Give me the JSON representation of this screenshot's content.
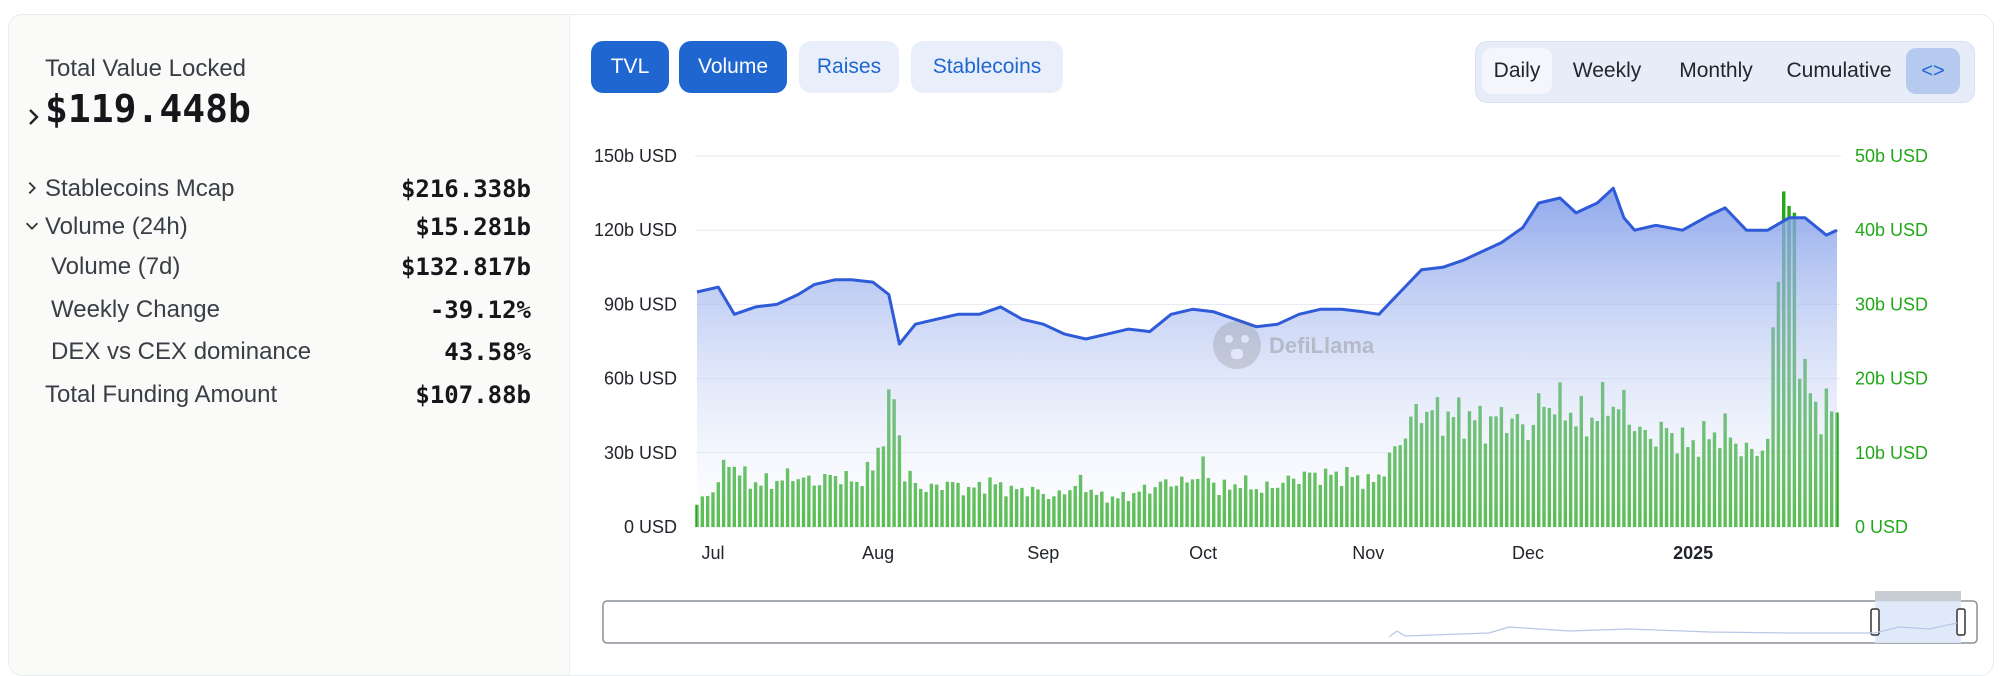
{
  "summary": {
    "tvl_label": "Total Value Locked",
    "tvl_value": "$119.448b",
    "rows": [
      {
        "label": "Stablecoins Mcap",
        "value": "$216.338b",
        "chevron": "right"
      },
      {
        "label": "Volume (24h)",
        "value": "$15.281b",
        "chevron": "down"
      },
      {
        "label": "Volume (7d)",
        "value": "$132.817b",
        "chevron": ""
      },
      {
        "label": "Weekly Change",
        "value": "-39.12%",
        "chevron": ""
      },
      {
        "label": "DEX vs CEX dominance",
        "value": "43.58%",
        "chevron": ""
      },
      {
        "label": "Total Funding Amount",
        "value": "$107.88b",
        "chevron": ""
      }
    ]
  },
  "tabs": [
    {
      "label": "TVL",
      "active": true
    },
    {
      "label": "Volume",
      "active": true
    },
    {
      "label": "Raises",
      "active": false
    },
    {
      "label": "Stablecoins",
      "active": false
    }
  ],
  "periods": [
    {
      "label": "Daily",
      "active": true
    },
    {
      "label": "Weekly",
      "active": false
    },
    {
      "label": "Monthly",
      "active": false
    },
    {
      "label": "Cumulative",
      "active": false
    }
  ],
  "embed_icon": "code-brackets-icon",
  "watermark": "DefiLlama",
  "colors": {
    "tvl": "#2f5ad8",
    "volume": "#23a81a",
    "accent": "#1f66d1"
  },
  "chart_data": {
    "type": "area",
    "x_axis": {
      "type": "date",
      "range": [
        "2024-06-28",
        "2025-01-28"
      ],
      "ticks": [
        {
          "date": "2024-07-01",
          "label": "Jul"
        },
        {
          "date": "2024-08-01",
          "label": "Aug"
        },
        {
          "date": "2024-09-01",
          "label": "Sep"
        },
        {
          "date": "2024-10-01",
          "label": "Oct"
        },
        {
          "date": "2024-11-01",
          "label": "Nov"
        },
        {
          "date": "2024-12-01",
          "label": "Dec"
        },
        {
          "date": "2025-01-01",
          "label": "2025"
        }
      ]
    },
    "y_left": {
      "range": [
        0,
        150
      ],
      "unit": "b USD",
      "ticks": [
        "0 USD",
        "30b USD",
        "60b USD",
        "90b USD",
        "120b USD",
        "150b USD"
      ]
    },
    "y_right": {
      "range": [
        0,
        50
      ],
      "unit": "b USD",
      "ticks": [
        "0 USD",
        "10b USD",
        "20b USD",
        "30b USD",
        "40b USD",
        "50b USD"
      ]
    },
    "grid": true,
    "series": [
      {
        "type": "area",
        "axis": "left",
        "points": [
          [
            "2024-06-28",
            95
          ],
          [
            "2024-07-02",
            97
          ],
          [
            "2024-07-05",
            86
          ],
          [
            "2024-07-09",
            89
          ],
          [
            "2024-07-13",
            90
          ],
          [
            "2024-07-17",
            94
          ],
          [
            "2024-07-20",
            98
          ],
          [
            "2024-07-24",
            100
          ],
          [
            "2024-07-27",
            100
          ],
          [
            "2024-07-31",
            99
          ],
          [
            "2024-08-03",
            94
          ],
          [
            "2024-08-05",
            74
          ],
          [
            "2024-08-08",
            82
          ],
          [
            "2024-08-12",
            84
          ],
          [
            "2024-08-16",
            86
          ],
          [
            "2024-08-20",
            86
          ],
          [
            "2024-08-24",
            89
          ],
          [
            "2024-08-28",
            84
          ],
          [
            "2024-09-01",
            82
          ],
          [
            "2024-09-05",
            78
          ],
          [
            "2024-09-09",
            76
          ],
          [
            "2024-09-13",
            78
          ],
          [
            "2024-09-17",
            80
          ],
          [
            "2024-09-21",
            79
          ],
          [
            "2024-09-25",
            86
          ],
          [
            "2024-09-29",
            88
          ],
          [
            "2024-10-03",
            87
          ],
          [
            "2024-10-07",
            84
          ],
          [
            "2024-10-11",
            81
          ],
          [
            "2024-10-15",
            82
          ],
          [
            "2024-10-19",
            86
          ],
          [
            "2024-10-23",
            88
          ],
          [
            "2024-10-27",
            88
          ],
          [
            "2024-10-31",
            87
          ],
          [
            "2024-11-03",
            86
          ],
          [
            "2024-11-07",
            95
          ],
          [
            "2024-11-11",
            104
          ],
          [
            "2024-11-15",
            105
          ],
          [
            "2024-11-19",
            108
          ],
          [
            "2024-11-23",
            112
          ],
          [
            "2024-11-26",
            115
          ],
          [
            "2024-11-30",
            121
          ],
          [
            "2024-12-03",
            131
          ],
          [
            "2024-12-07",
            133
          ],
          [
            "2024-12-10",
            127
          ],
          [
            "2024-12-14",
            131
          ],
          [
            "2024-12-17",
            137
          ],
          [
            "2024-12-19",
            125
          ],
          [
            "2024-12-21",
            120
          ],
          [
            "2024-12-25",
            122
          ],
          [
            "2024-12-30",
            120
          ],
          [
            "2025-01-04",
            126
          ],
          [
            "2025-01-07",
            129
          ],
          [
            "2025-01-11",
            120
          ],
          [
            "2025-01-15",
            120
          ],
          [
            "2025-01-19",
            125
          ],
          [
            "2025-01-22",
            125
          ],
          [
            "2025-01-26",
            118
          ],
          [
            "2025-01-28",
            120
          ]
        ]
      },
      {
        "type": "bar",
        "axis": "right",
        "points": [
          [
            "2024-06-28",
            3
          ],
          [
            "2024-07-01",
            5
          ],
          [
            "2024-07-04",
            9
          ],
          [
            "2024-07-08",
            6
          ],
          [
            "2024-07-12",
            6
          ],
          [
            "2024-07-16",
            7
          ],
          [
            "2024-07-20",
            6
          ],
          [
            "2024-07-24",
            7
          ],
          [
            "2024-07-28",
            6
          ],
          [
            "2024-07-31",
            8
          ],
          [
            "2024-08-04",
            18
          ],
          [
            "2024-08-06",
            7
          ],
          [
            "2024-08-10",
            5
          ],
          [
            "2024-08-14",
            6
          ],
          [
            "2024-08-18",
            5
          ],
          [
            "2024-08-22",
            6
          ],
          [
            "2024-08-26",
            5
          ],
          [
            "2024-08-30",
            5
          ],
          [
            "2024-09-03",
            4
          ],
          [
            "2024-09-08",
            6
          ],
          [
            "2024-09-12",
            4
          ],
          [
            "2024-09-16",
            4
          ],
          [
            "2024-09-20",
            5
          ],
          [
            "2024-09-24",
            6
          ],
          [
            "2024-09-28",
            6
          ],
          [
            "2024-10-01",
            8
          ],
          [
            "2024-10-04",
            5
          ],
          [
            "2024-10-08",
            6
          ],
          [
            "2024-10-12",
            5
          ],
          [
            "2024-10-16",
            6
          ],
          [
            "2024-10-20",
            7
          ],
          [
            "2024-10-24",
            7
          ],
          [
            "2024-10-28",
            7
          ],
          [
            "2024-11-02",
            6
          ],
          [
            "2024-11-05",
            9
          ],
          [
            "2024-11-08",
            13
          ],
          [
            "2024-11-11",
            16
          ],
          [
            "2024-11-15",
            15
          ],
          [
            "2024-11-19",
            15
          ],
          [
            "2024-11-23",
            14
          ],
          [
            "2024-11-27",
            15
          ],
          [
            "2024-12-01",
            13
          ],
          [
            "2024-12-04",
            17
          ],
          [
            "2024-12-08",
            16
          ],
          [
            "2024-12-12",
            14
          ],
          [
            "2024-12-16",
            17
          ],
          [
            "2024-12-19",
            16
          ],
          [
            "2024-12-23",
            12
          ],
          [
            "2024-12-27",
            13
          ],
          [
            "2024-12-31",
            11
          ],
          [
            "2025-01-03",
            12
          ],
          [
            "2025-01-07",
            13
          ],
          [
            "2025-01-11",
            10
          ],
          [
            "2025-01-15",
            11
          ],
          [
            "2025-01-16",
            25
          ],
          [
            "2025-01-17",
            39
          ],
          [
            "2025-01-18",
            44
          ],
          [
            "2025-01-19",
            42
          ],
          [
            "2025-01-20",
            38
          ],
          [
            "2025-01-21",
            25
          ],
          [
            "2025-01-22",
            21
          ],
          [
            "2025-01-24",
            15
          ],
          [
            "2025-01-26",
            17
          ],
          [
            "2025-01-28",
            14
          ]
        ]
      }
    ]
  }
}
